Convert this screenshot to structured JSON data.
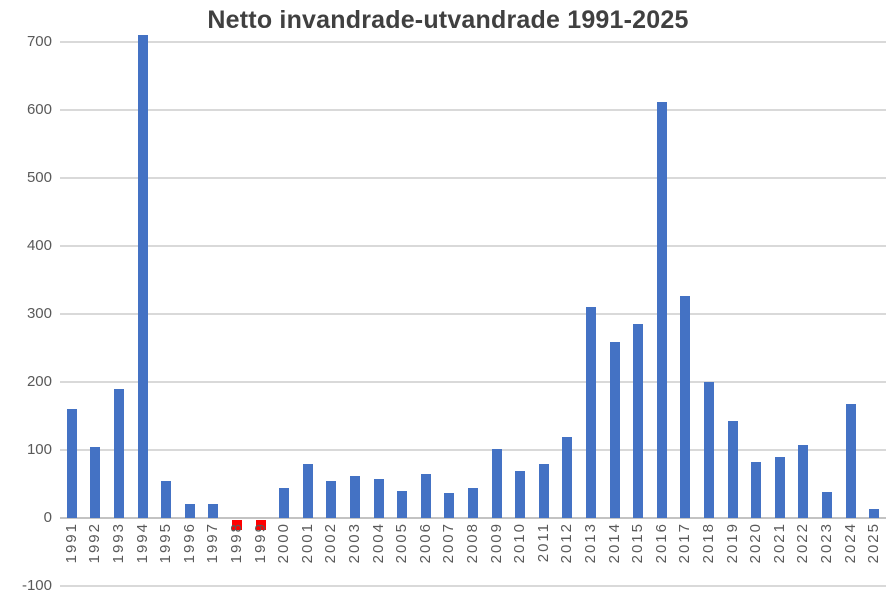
{
  "chart_data": {
    "type": "bar",
    "title": "Netto invandrade-utvandrade 1991-2025",
    "categories": [
      "1991",
      "1992",
      "1993",
      "1994",
      "1995",
      "1996",
      "1997",
      "1998",
      "1999",
      "2000",
      "2001",
      "2002",
      "2003",
      "2004",
      "2005",
      "2006",
      "2007",
      "2008",
      "2009",
      "2010",
      "2011",
      "2012",
      "2013",
      "2014",
      "2015",
      "2016",
      "2017",
      "2018",
      "2019",
      "2020",
      "2021",
      "2022",
      "2023",
      "2024",
      "2025"
    ],
    "values": [
      160,
      105,
      190,
      710,
      55,
      20,
      20,
      -14,
      -14,
      44,
      80,
      54,
      62,
      57,
      40,
      64,
      37,
      44,
      102,
      69,
      79,
      119,
      310,
      259,
      285,
      612,
      327,
      200,
      142,
      82,
      90,
      108,
      38,
      167,
      13
    ],
    "y_ticks": [
      700,
      600,
      500,
      400,
      300,
      200,
      100,
      0,
      -100
    ],
    "ylim": [
      -100,
      720
    ],
    "xlabel": "",
    "ylabel": "",
    "grid": "horizontal",
    "legend_position": "none",
    "colors": {
      "bar_positive": "#4472C4",
      "bar_negative": "#FF0000",
      "gridline": "#D9D9D9",
      "zero_axis": "#C3C3C3",
      "tick_label": "#595959",
      "title": "#404040",
      "background": "#FFFFFF"
    }
  }
}
